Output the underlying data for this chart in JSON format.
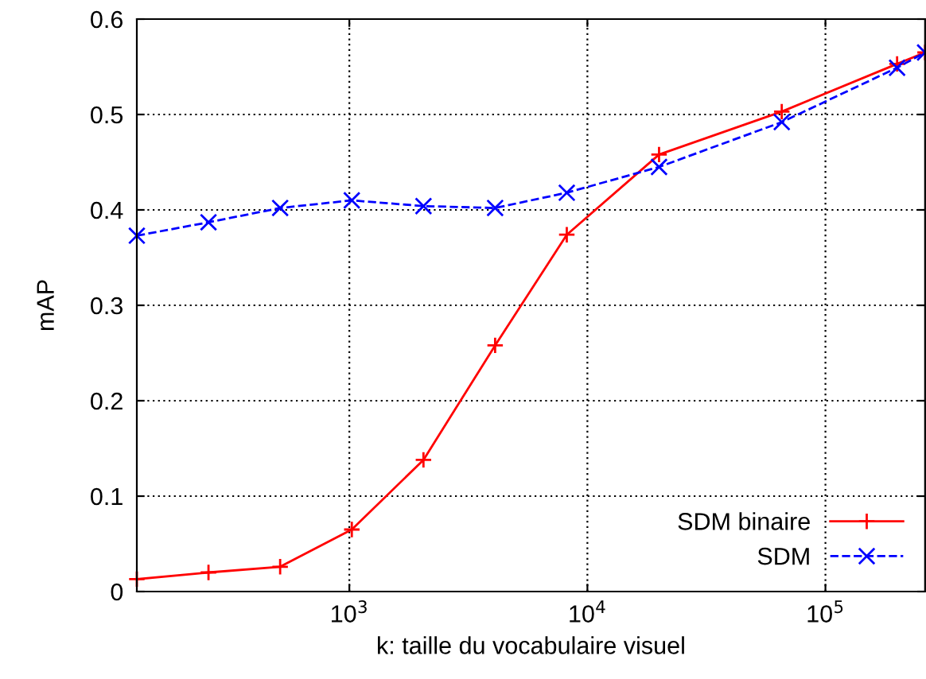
{
  "chart_data": {
    "type": "line",
    "xlabel": "k: taille du vocabulaire visuel",
    "ylabel": "mAP",
    "log": "x",
    "x": [
      128,
      256,
      512,
      1024,
      2048,
      4096,
      8192,
      20000,
      65536,
      200000,
      262144
    ],
    "series": [
      {
        "name": "SDM binaire",
        "color": "#ff0000",
        "marker": "plus",
        "line_style": "solid",
        "values": [
          0.013,
          0.02,
          0.026,
          0.065,
          0.138,
          0.258,
          0.374,
          0.458,
          0.503,
          0.553,
          0.565
        ]
      },
      {
        "name": "SDM",
        "color": "#0000ff",
        "marker": "cross",
        "line_style": "dashed",
        "values": [
          0.373,
          0.387,
          0.402,
          0.41,
          0.404,
          0.402,
          0.418,
          0.445,
          0.492,
          0.549,
          0.565
        ]
      }
    ],
    "xlim": [
      128,
      262144
    ],
    "ylim": [
      0,
      0.6
    ],
    "xticks": [
      {
        "value": 1000,
        "label": "10$^{3}$"
      },
      {
        "value": 10000,
        "label": "10$^{4}$"
      },
      {
        "value": 100000,
        "label": "10$^{5}$"
      }
    ],
    "yticks": [
      0,
      0.1,
      0.2,
      0.3,
      0.4,
      0.5,
      0.6
    ],
    "grid": true,
    "legend": "bottom right"
  }
}
